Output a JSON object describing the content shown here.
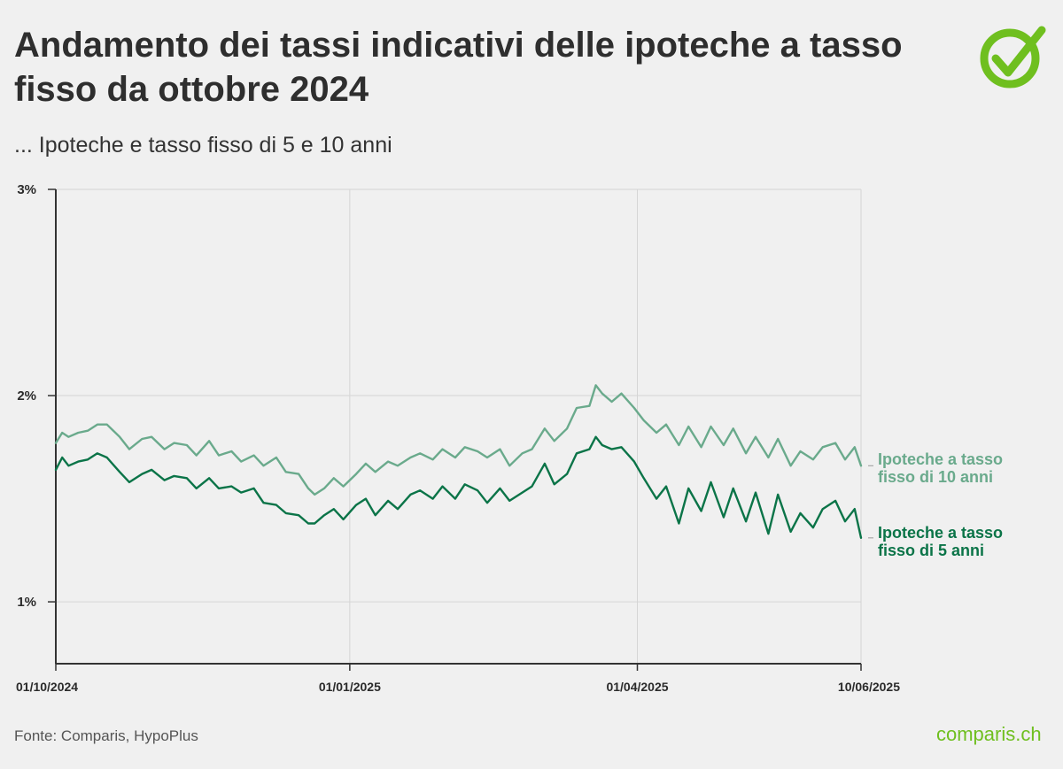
{
  "header": {
    "title": "Andamento dei tassi indicativi delle ipoteche a tasso fisso da ottobre 2024",
    "subtitle": "... Ipoteche e tasso fisso di 5 e 10 anni"
  },
  "footer": {
    "source": "Fonte: Comparis, HypoPlus",
    "brand": "comparis.ch"
  },
  "logo_icon": "checkmark-circle-icon",
  "colors": {
    "background": "#f0f0f0",
    "series_10y": "#6aaa8c",
    "series_5y": "#0b7448",
    "brand": "#6fbf1f"
  },
  "chart_data": {
    "type": "line",
    "title": "Andamento dei tassi indicativi delle ipoteche a tasso fisso da ottobre 2024",
    "subtitle": "... Ipoteche e tasso fisso di 5 e 10 anni",
    "x_start": "01/10/2024",
    "x_end": "10/06/2025",
    "xticks": [
      "01/10/2024",
      "01/01/2025",
      "01/04/2025",
      "10/06/2025"
    ],
    "yticks": [
      {
        "value": 3,
        "label": "3%"
      },
      {
        "value": 2,
        "label": "2%"
      },
      {
        "value": 1,
        "label": "1%"
      }
    ],
    "ylim": [
      0.7,
      3.0
    ],
    "grid": true,
    "legend": "direct labels at right end of lines",
    "series": [
      {
        "name": "Ipoteche a tasso fisso di 10 anni",
        "label_lines": [
          "Ipoteche a tasso",
          "fisso di 10 anni"
        ],
        "color": "#6aaa8c",
        "points": [
          [
            "01/10/2024",
            1.77
          ],
          [
            "03/10/2024",
            1.82
          ],
          [
            "05/10/2024",
            1.8
          ],
          [
            "08/10/2024",
            1.82
          ],
          [
            "11/10/2024",
            1.83
          ],
          [
            "14/10/2024",
            1.86
          ],
          [
            "17/10/2024",
            1.86
          ],
          [
            "21/10/2024",
            1.8
          ],
          [
            "24/10/2024",
            1.74
          ],
          [
            "28/10/2024",
            1.79
          ],
          [
            "31/10/2024",
            1.8
          ],
          [
            "04/11/2024",
            1.74
          ],
          [
            "07/11/2024",
            1.77
          ],
          [
            "11/11/2024",
            1.76
          ],
          [
            "14/11/2024",
            1.71
          ],
          [
            "18/11/2024",
            1.78
          ],
          [
            "21/11/2024",
            1.71
          ],
          [
            "25/11/2024",
            1.73
          ],
          [
            "28/11/2024",
            1.68
          ],
          [
            "02/12/2024",
            1.71
          ],
          [
            "05/12/2024",
            1.66
          ],
          [
            "09/12/2024",
            1.7
          ],
          [
            "12/12/2024",
            1.63
          ],
          [
            "16/12/2024",
            1.62
          ],
          [
            "19/12/2024",
            1.55
          ],
          [
            "21/12/2024",
            1.52
          ],
          [
            "24/12/2024",
            1.55
          ],
          [
            "27/12/2024",
            1.6
          ],
          [
            "30/12/2024",
            1.56
          ],
          [
            "03/01/2025",
            1.62
          ],
          [
            "06/01/2025",
            1.67
          ],
          [
            "09/01/2025",
            1.63
          ],
          [
            "13/01/2025",
            1.68
          ],
          [
            "16/01/2025",
            1.66
          ],
          [
            "20/01/2025",
            1.7
          ],
          [
            "23/01/2025",
            1.72
          ],
          [
            "27/01/2025",
            1.69
          ],
          [
            "30/01/2025",
            1.74
          ],
          [
            "03/02/2025",
            1.7
          ],
          [
            "06/02/2025",
            1.75
          ],
          [
            "10/02/2025",
            1.73
          ],
          [
            "13/02/2025",
            1.7
          ],
          [
            "17/02/2025",
            1.74
          ],
          [
            "20/02/2025",
            1.66
          ],
          [
            "24/02/2025",
            1.72
          ],
          [
            "27/02/2025",
            1.74
          ],
          [
            "03/03/2025",
            1.84
          ],
          [
            "06/03/2025",
            1.78
          ],
          [
            "10/03/2025",
            1.84
          ],
          [
            "13/03/2025",
            1.94
          ],
          [
            "17/03/2025",
            1.95
          ],
          [
            "19/03/2025",
            2.05
          ],
          [
            "21/03/2025",
            2.01
          ],
          [
            "24/03/2025",
            1.97
          ],
          [
            "27/03/2025",
            2.01
          ],
          [
            "31/03/2025",
            1.94
          ],
          [
            "03/04/2025",
            1.88
          ],
          [
            "07/04/2025",
            1.82
          ],
          [
            "10/04/2025",
            1.86
          ],
          [
            "14/04/2025",
            1.76
          ],
          [
            "17/04/2025",
            1.85
          ],
          [
            "21/04/2025",
            1.75
          ],
          [
            "24/04/2025",
            1.85
          ],
          [
            "28/04/2025",
            1.76
          ],
          [
            "01/05/2025",
            1.84
          ],
          [
            "05/05/2025",
            1.72
          ],
          [
            "08/05/2025",
            1.8
          ],
          [
            "12/05/2025",
            1.7
          ],
          [
            "15/05/2025",
            1.79
          ],
          [
            "19/05/2025",
            1.66
          ],
          [
            "22/05/2025",
            1.73
          ],
          [
            "26/05/2025",
            1.69
          ],
          [
            "29/05/2025",
            1.75
          ],
          [
            "02/06/2025",
            1.77
          ],
          [
            "05/06/2025",
            1.69
          ],
          [
            "08/06/2025",
            1.75
          ],
          [
            "10/06/2025",
            1.66
          ]
        ]
      },
      {
        "name": "Ipoteche a tasso fisso di 5 anni",
        "label_lines": [
          "Ipoteche a tasso",
          "fisso di 5 anni"
        ],
        "color": "#0b7448",
        "points": [
          [
            "01/10/2024",
            1.64
          ],
          [
            "03/10/2024",
            1.7
          ],
          [
            "05/10/2024",
            1.66
          ],
          [
            "08/10/2024",
            1.68
          ],
          [
            "11/10/2024",
            1.69
          ],
          [
            "14/10/2024",
            1.72
          ],
          [
            "17/10/2024",
            1.7
          ],
          [
            "21/10/2024",
            1.63
          ],
          [
            "24/10/2024",
            1.58
          ],
          [
            "28/10/2024",
            1.62
          ],
          [
            "31/10/2024",
            1.64
          ],
          [
            "04/11/2024",
            1.59
          ],
          [
            "07/11/2024",
            1.61
          ],
          [
            "11/11/2024",
            1.6
          ],
          [
            "14/11/2024",
            1.55
          ],
          [
            "18/11/2024",
            1.6
          ],
          [
            "21/11/2024",
            1.55
          ],
          [
            "25/11/2024",
            1.56
          ],
          [
            "28/11/2024",
            1.53
          ],
          [
            "02/12/2024",
            1.55
          ],
          [
            "05/12/2024",
            1.48
          ],
          [
            "09/12/2024",
            1.47
          ],
          [
            "12/12/2024",
            1.43
          ],
          [
            "16/12/2024",
            1.42
          ],
          [
            "19/12/2024",
            1.38
          ],
          [
            "21/12/2024",
            1.38
          ],
          [
            "24/12/2024",
            1.42
          ],
          [
            "27/12/2024",
            1.45
          ],
          [
            "30/12/2024",
            1.4
          ],
          [
            "03/01/2025",
            1.47
          ],
          [
            "06/01/2025",
            1.5
          ],
          [
            "09/01/2025",
            1.42
          ],
          [
            "13/01/2025",
            1.49
          ],
          [
            "16/01/2025",
            1.45
          ],
          [
            "20/01/2025",
            1.52
          ],
          [
            "23/01/2025",
            1.54
          ],
          [
            "27/01/2025",
            1.5
          ],
          [
            "30/01/2025",
            1.56
          ],
          [
            "03/02/2025",
            1.5
          ],
          [
            "06/02/2025",
            1.57
          ],
          [
            "10/02/2025",
            1.54
          ],
          [
            "13/02/2025",
            1.48
          ],
          [
            "17/02/2025",
            1.55
          ],
          [
            "20/02/2025",
            1.49
          ],
          [
            "24/02/2025",
            1.53
          ],
          [
            "27/02/2025",
            1.56
          ],
          [
            "03/03/2025",
            1.67
          ],
          [
            "06/03/2025",
            1.57
          ],
          [
            "10/03/2025",
            1.62
          ],
          [
            "13/03/2025",
            1.72
          ],
          [
            "17/03/2025",
            1.74
          ],
          [
            "19/03/2025",
            1.8
          ],
          [
            "21/03/2025",
            1.76
          ],
          [
            "24/03/2025",
            1.74
          ],
          [
            "27/03/2025",
            1.75
          ],
          [
            "31/03/2025",
            1.68
          ],
          [
            "03/04/2025",
            1.6
          ],
          [
            "07/04/2025",
            1.5
          ],
          [
            "10/04/2025",
            1.56
          ],
          [
            "14/04/2025",
            1.38
          ],
          [
            "17/04/2025",
            1.55
          ],
          [
            "21/04/2025",
            1.44
          ],
          [
            "24/04/2025",
            1.58
          ],
          [
            "28/04/2025",
            1.41
          ],
          [
            "01/05/2025",
            1.55
          ],
          [
            "05/05/2025",
            1.39
          ],
          [
            "08/05/2025",
            1.53
          ],
          [
            "12/05/2025",
            1.33
          ],
          [
            "15/05/2025",
            1.52
          ],
          [
            "19/05/2025",
            1.34
          ],
          [
            "22/05/2025",
            1.43
          ],
          [
            "26/05/2025",
            1.36
          ],
          [
            "29/05/2025",
            1.45
          ],
          [
            "02/06/2025",
            1.49
          ],
          [
            "05/06/2025",
            1.39
          ],
          [
            "08/06/2025",
            1.45
          ],
          [
            "10/06/2025",
            1.31
          ]
        ]
      }
    ]
  }
}
